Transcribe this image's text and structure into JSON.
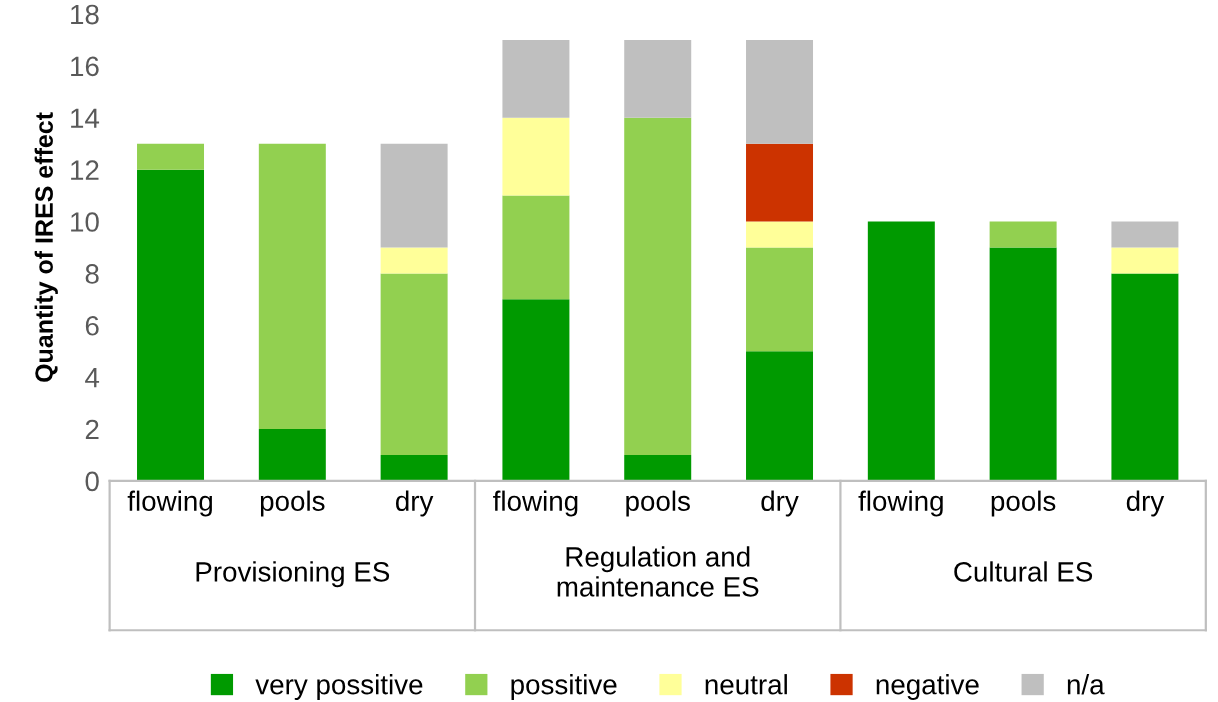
{
  "chart_data": {
    "type": "bar",
    "stacked": true,
    "ylabel": "Quantity of IRES effect",
    "categories": [
      "flowing",
      "pools",
      "dry",
      "flowing",
      "pools",
      "dry",
      "flowing",
      "pools",
      "dry"
    ],
    "series": [
      {
        "name": "very possitive",
        "color": "#009a00",
        "values": [
          12,
          2,
          1,
          7,
          1,
          5,
          10,
          9,
          8
        ]
      },
      {
        "name": "possitive",
        "color": "#92d050",
        "values": [
          1,
          11,
          7,
          4,
          13,
          4,
          0,
          1,
          0
        ]
      },
      {
        "name": "neutral",
        "color": "#ffff99",
        "values": [
          0,
          0,
          1,
          3,
          0,
          1,
          0,
          0,
          1
        ]
      },
      {
        "name": "negative",
        "color": "#cc3300",
        "values": [
          0,
          0,
          0,
          0,
          0,
          3,
          0,
          0,
          0
        ]
      },
      {
        "name": "n/a",
        "color": "#bfbfbf",
        "values": [
          0,
          0,
          4,
          3,
          3,
          4,
          0,
          0,
          1
        ]
      }
    ],
    "annotations": [
      "Provisioning ES",
      "Regulation and\nmaintenance ES",
      "Cultural ES"
    ],
    "ylim": [
      0,
      18
    ],
    "yticks": [
      0,
      2,
      4,
      6,
      8,
      10,
      12,
      14,
      16,
      18
    ],
    "grid": false,
    "legend": "bottom"
  }
}
